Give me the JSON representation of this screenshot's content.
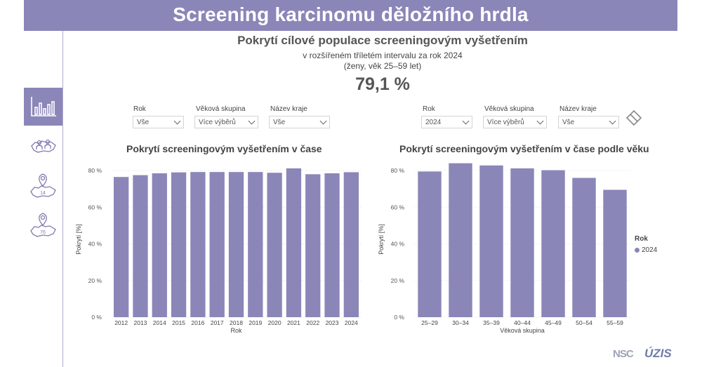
{
  "header": {
    "title": "Screening karcinomu děložního hrdla"
  },
  "sidebar": {
    "items": [
      {
        "name": "chart-nav",
        "icon": "bar-chart-icon",
        "active": true
      },
      {
        "name": "regions-nav",
        "icon": "people-map-icon",
        "active": false
      },
      {
        "name": "districts-14-nav",
        "icon": "map-pin-icon",
        "badge": "14",
        "active": false
      },
      {
        "name": "districts-76-nav",
        "icon": "map-pin-icon",
        "badge": "76",
        "active": false
      }
    ]
  },
  "kpi": {
    "title": "Pokrytí cílové populace screeningovým vyšetřením",
    "line2": "v rozšířeném tříletém intervalu za rok 2024",
    "line3": "(ženy, věk 25–59 let)",
    "value": "79,1 %"
  },
  "filters_left": {
    "rok": {
      "label": "Rok",
      "value": "Vše"
    },
    "vek": {
      "label": "Věková skupina",
      "value": "Více výběrů"
    },
    "kraj": {
      "label": "Název kraje",
      "value": "Vše"
    }
  },
  "filters_right": {
    "rok": {
      "label": "Rok",
      "value": "2024"
    },
    "vek": {
      "label": "Věková skupina",
      "value": "Více výběrů"
    },
    "kraj": {
      "label": "Název kraje",
      "value": "Vše"
    }
  },
  "eraser": {
    "icon": "eraser-icon"
  },
  "colors": {
    "accent": "#8b86b8",
    "bar": "#8b86b8",
    "grid": "#e3e3e3"
  },
  "chart_data": [
    {
      "type": "bar",
      "title": "Pokrytí screeningovým vyšetřením v čase",
      "xlabel": "Rok",
      "ylabel": "Pokrytí [%]",
      "ylim": [
        0,
        85
      ],
      "yticks": [
        0,
        20,
        40,
        60,
        80
      ],
      "ytick_labels": [
        "0 %",
        "20 %",
        "40 %",
        "60 %",
        "80 %"
      ],
      "categories": [
        "2012",
        "2013",
        "2014",
        "2015",
        "2016",
        "2017",
        "2018",
        "2019",
        "2020",
        "2021",
        "2022",
        "2023",
        "2024"
      ],
      "values": [
        76.5,
        77.5,
        78.5,
        79.0,
        79.2,
        79.2,
        79.2,
        79.2,
        78.8,
        81.2,
        78.0,
        78.5,
        79.1
      ],
      "grid": true
    },
    {
      "type": "bar",
      "title": "Pokrytí screeningovým vyšetřením v čase podle věku",
      "xlabel": "Věková skupina",
      "ylabel": "Pokrytí [%]",
      "ylim": [
        0,
        85
      ],
      "yticks": [
        0,
        20,
        40,
        60,
        80
      ],
      "ytick_labels": [
        "0 %",
        "20 %",
        "40 %",
        "60 %",
        "80 %"
      ],
      "categories": [
        "25–29",
        "30–34",
        "35–39",
        "40–44",
        "45–49",
        "50–54",
        "55–59"
      ],
      "series": [
        {
          "name": "2024",
          "values": [
            79.5,
            84.0,
            82.8,
            81.2,
            80.2,
            76.0,
            69.5
          ]
        }
      ],
      "legend": {
        "title": "Rok",
        "position": "right"
      },
      "grid": true
    }
  ],
  "logos": {
    "nsc": "NSC",
    "uzis": "ÚZIS"
  }
}
